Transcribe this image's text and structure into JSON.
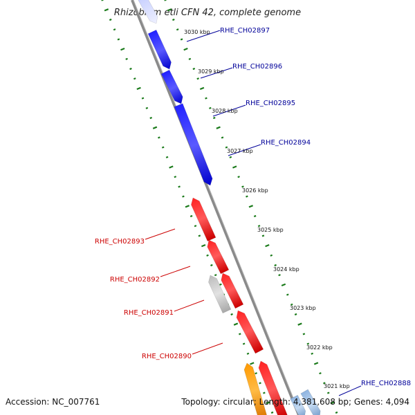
{
  "title": "Rhizobium etli CFN 42, complete genome",
  "footer": {
    "accession": "Accession: NC_007761",
    "topology": "Topology: circular; Length: 4,381,608 bp; Genes: 4,094"
  },
  "colors": {
    "forward": "#0000ff",
    "reverse": "#ff0000",
    "pseudo": "#c8c8c8",
    "orange": "#ff9900",
    "lightblue": "#9ec0e8",
    "backbone": "#888888",
    "ticks": "#1a7a1a",
    "forward_label": "#000099",
    "reverse_label": "#cc0000"
  },
  "scale_labels": [
    "3030 kbp",
    "3029 kbp",
    "3028 kbp",
    "3027 kbp",
    "3026 kbp",
    "3025 kbp",
    "3024 kbp",
    "3023 kbp",
    "3022 kbp",
    "3021 kbp"
  ],
  "forward_genes": [
    "RHE_CH02897",
    "RHE_CH02896",
    "RHE_CH02895",
    "RHE_CH02894",
    "RHE_CH02888"
  ],
  "reverse_genes": [
    "RHE_CH02893",
    "RHE_CH02892",
    "RHE_CH02891",
    "RHE_CH02890"
  ]
}
